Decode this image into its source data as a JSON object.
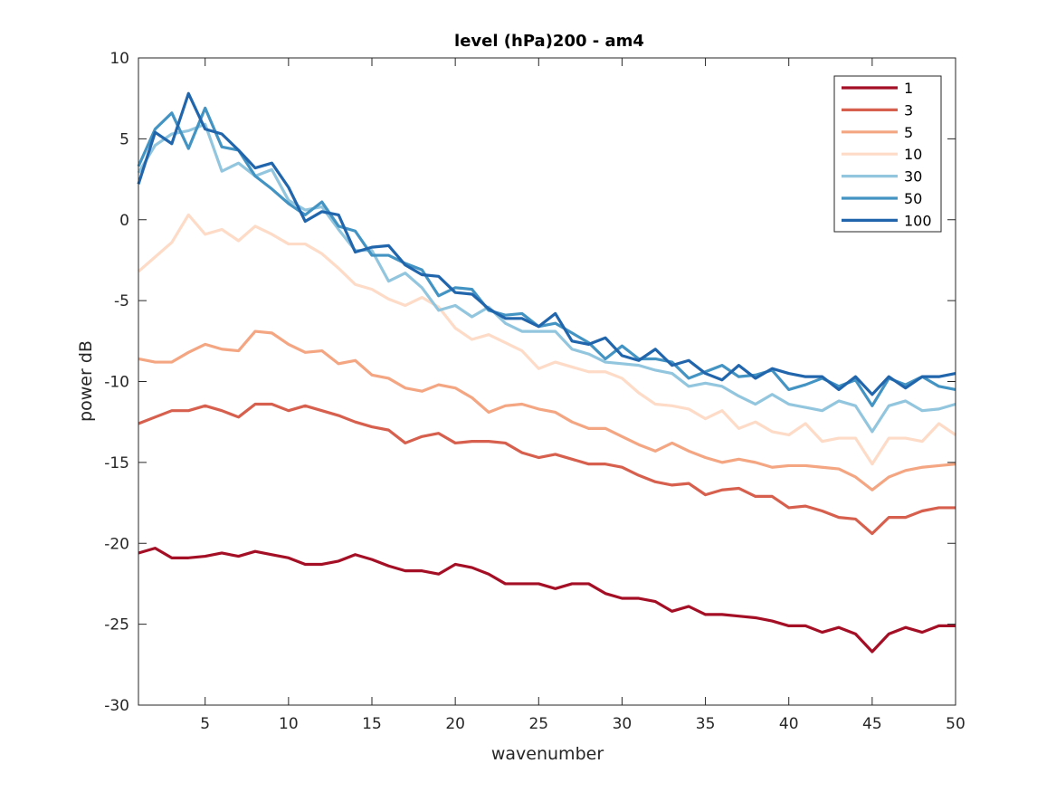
{
  "chart_data": {
    "type": "line",
    "title": "level (hPa)200 - am4",
    "xlabel": "wavenumber",
    "ylabel": "power dB",
    "xlim": [
      1,
      50
    ],
    "ylim": [
      -30,
      10
    ],
    "xticks": [
      5,
      10,
      15,
      20,
      25,
      30,
      35,
      40,
      45,
      50
    ],
    "yticks": [
      10,
      5,
      0,
      -5,
      -10,
      -15,
      -20,
      -25,
      -30
    ],
    "legend_position": "top-right",
    "grid": false,
    "x": [
      1,
      2,
      3,
      4,
      5,
      6,
      7,
      8,
      9,
      10,
      11,
      12,
      13,
      14,
      15,
      16,
      17,
      18,
      19,
      20,
      21,
      22,
      23,
      24,
      25,
      26,
      27,
      28,
      29,
      30,
      31,
      32,
      33,
      34,
      35,
      36,
      37,
      38,
      39,
      40,
      41,
      42,
      43,
      44,
      45,
      46,
      47,
      48,
      49,
      50
    ],
    "series": [
      {
        "name": "1",
        "color": "#a50f26",
        "values": [
          -20.6,
          -20.3,
          -20.9,
          -20.9,
          -20.8,
          -20.6,
          -20.8,
          -20.5,
          -20.7,
          -20.9,
          -21.3,
          -21.3,
          -21.1,
          -20.7,
          -21.0,
          -21.4,
          -21.7,
          -21.7,
          -21.9,
          -21.3,
          -21.5,
          -21.9,
          -22.5,
          -22.5,
          -22.5,
          -22.8,
          -22.5,
          -22.5,
          -23.1,
          -23.4,
          -23.4,
          -23.6,
          -24.2,
          -23.9,
          -24.4,
          -24.4,
          -24.5,
          -24.6,
          -24.8,
          -25.1,
          -25.1,
          -25.5,
          -25.2,
          -25.6,
          -26.7,
          -25.6,
          -25.2,
          -25.5,
          -25.1,
          -25.1
        ]
      },
      {
        "name": "3",
        "color": "#d6604d",
        "values": [
          -12.6,
          -12.2,
          -11.8,
          -11.8,
          -11.5,
          -11.8,
          -12.2,
          -11.4,
          -11.4,
          -11.8,
          -11.5,
          -11.8,
          -12.1,
          -12.5,
          -12.8,
          -13.0,
          -13.8,
          -13.4,
          -13.2,
          -13.8,
          -13.7,
          -13.7,
          -13.8,
          -14.4,
          -14.7,
          -14.5,
          -14.8,
          -15.1,
          -15.1,
          -15.3,
          -15.8,
          -16.2,
          -16.4,
          -16.3,
          -17.0,
          -16.7,
          -16.6,
          -17.1,
          -17.1,
          -17.8,
          -17.7,
          -18.0,
          -18.4,
          -18.5,
          -19.4,
          -18.4,
          -18.4,
          -18.0,
          -17.8,
          -17.8
        ]
      },
      {
        "name": "5",
        "color": "#f4a582",
        "values": [
          -8.6,
          -8.8,
          -8.8,
          -8.2,
          -7.7,
          -8.0,
          -8.1,
          -6.9,
          -7.0,
          -7.7,
          -8.2,
          -8.1,
          -8.9,
          -8.7,
          -9.6,
          -9.8,
          -10.4,
          -10.6,
          -10.2,
          -10.4,
          -11.0,
          -11.9,
          -11.5,
          -11.4,
          -11.7,
          -11.9,
          -12.5,
          -12.9,
          -12.9,
          -13.4,
          -13.9,
          -14.3,
          -13.8,
          -14.3,
          -14.7,
          -15.0,
          -14.8,
          -15.0,
          -15.3,
          -15.2,
          -15.2,
          -15.3,
          -15.4,
          -15.9,
          -16.7,
          -15.9,
          -15.5,
          -15.3,
          -15.2,
          -15.1
        ]
      },
      {
        "name": "10",
        "color": "#fddbc7",
        "values": [
          -3.2,
          -2.3,
          -1.4,
          0.3,
          -0.9,
          -0.6,
          -1.3,
          -0.4,
          -0.9,
          -1.5,
          -1.5,
          -2.1,
          -3.0,
          -4.0,
          -4.3,
          -4.9,
          -5.3,
          -4.8,
          -5.4,
          -6.7,
          -7.4,
          -7.1,
          -7.6,
          -8.1,
          -9.2,
          -8.8,
          -9.1,
          -9.4,
          -9.4,
          -9.8,
          -10.7,
          -11.4,
          -11.5,
          -11.7,
          -12.3,
          -11.8,
          -12.9,
          -12.5,
          -13.1,
          -13.3,
          -12.6,
          -13.7,
          -13.5,
          -13.5,
          -15.1,
          -13.5,
          -13.5,
          -13.7,
          -12.6,
          -13.3
        ]
      },
      {
        "name": "30",
        "color": "#92c5de",
        "values": [
          2.9,
          4.6,
          5.3,
          5.5,
          5.9,
          3.0,
          3.5,
          2.7,
          3.1,
          1.2,
          0.6,
          0.8,
          -0.6,
          -1.9,
          -1.9,
          -3.8,
          -3.3,
          -4.2,
          -5.6,
          -5.3,
          -6.0,
          -5.4,
          -6.4,
          -6.9,
          -6.9,
          -6.9,
          -8.0,
          -8.3,
          -8.8,
          -8.9,
          -9.0,
          -9.3,
          -9.5,
          -10.3,
          -10.1,
          -10.3,
          -10.9,
          -11.4,
          -10.8,
          -11.4,
          -11.6,
          -11.8,
          -11.2,
          -11.5,
          -13.1,
          -11.5,
          -11.2,
          -11.8,
          -11.7,
          -11.4
        ]
      },
      {
        "name": "50",
        "color": "#4393c3",
        "values": [
          3.3,
          5.6,
          6.6,
          4.4,
          6.9,
          4.5,
          4.3,
          2.7,
          1.9,
          1.0,
          0.3,
          1.1,
          -0.4,
          -0.7,
          -2.2,
          -2.2,
          -2.7,
          -3.1,
          -4.7,
          -4.2,
          -4.3,
          -5.6,
          -5.9,
          -5.8,
          -6.6,
          -6.4,
          -7.0,
          -7.6,
          -8.6,
          -7.8,
          -8.6,
          -8.6,
          -8.8,
          -9.8,
          -9.4,
          -9.0,
          -9.7,
          -9.6,
          -9.3,
          -10.5,
          -10.2,
          -9.8,
          -10.3,
          -9.9,
          -11.5,
          -9.8,
          -10.2,
          -9.7,
          -10.3,
          -10.5
        ]
      },
      {
        "name": "100",
        "color": "#2166ac",
        "values": [
          2.2,
          5.4,
          4.7,
          7.8,
          5.6,
          5.3,
          4.3,
          3.2,
          3.5,
          2.0,
          -0.1,
          0.5,
          0.3,
          -2.0,
          -1.7,
          -1.6,
          -2.8,
          -3.4,
          -3.5,
          -4.5,
          -4.6,
          -5.5,
          -6.1,
          -6.1,
          -6.6,
          -5.8,
          -7.5,
          -7.7,
          -7.3,
          -8.4,
          -8.7,
          -8.0,
          -9.0,
          -8.7,
          -9.5,
          -9.9,
          -9.0,
          -9.8,
          -9.2,
          -9.5,
          -9.7,
          -9.7,
          -10.5,
          -9.7,
          -10.8,
          -9.7,
          -10.4,
          -9.7,
          -9.7,
          -9.5
        ]
      }
    ]
  }
}
